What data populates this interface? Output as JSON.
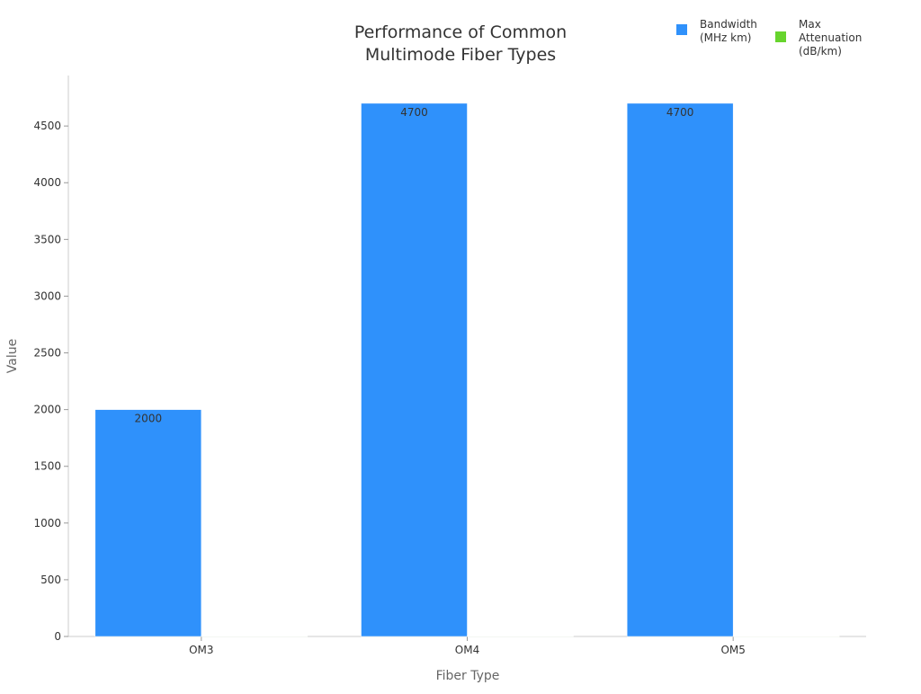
{
  "chart_data": {
    "type": "bar",
    "title_lines": [
      "Performance of Common",
      "Multimode Fiber Types"
    ],
    "xlabel": "Fiber Type",
    "ylabel": "Value",
    "categories": [
      "OM3",
      "OM4",
      "OM5"
    ],
    "series": [
      {
        "name_lines": [
          "Bandwidth",
          "(MHz km)"
        ],
        "values": [
          2000,
          4700,
          4700
        ],
        "color": "#2f91fb",
        "show_labels": true
      },
      {
        "name_lines": [
          "Max",
          "Attenuation",
          "(dB/km)"
        ],
        "values": [
          3.5,
          3.5,
          3.0
        ],
        "color": "#67d42d",
        "show_labels": false
      }
    ],
    "ylim": [
      0,
      4945
    ],
    "yticks": [
      0,
      500,
      1000,
      1500,
      2000,
      2500,
      3000,
      3500,
      4000,
      4500
    ],
    "grid": false,
    "legend": "top-right"
  }
}
